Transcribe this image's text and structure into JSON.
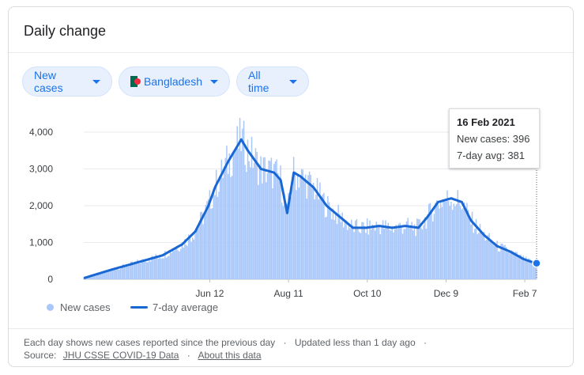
{
  "card": {
    "title": "Daily change"
  },
  "filters": {
    "metric": "New cases",
    "country": "Bangladesh",
    "range": "All time"
  },
  "tooltip": {
    "date": "16 Feb 2021",
    "new_cases": "New cases: 396",
    "avg": "7-day avg: 381"
  },
  "legend": {
    "bars": "New cases",
    "line": "7-day average"
  },
  "footer": {
    "line1": "Each day shows new cases reported since the previous day",
    "updated": "Updated less than 1 day ago",
    "source_label": "Source:",
    "source_link": "JHU CSSE COVID-19 Data",
    "about": "About this data"
  },
  "colors": {
    "bars": "#a8c7fa",
    "line": "#1967d2",
    "accent": "#1a73e8"
  },
  "chart_data": {
    "type": "bar",
    "x_start": "2020-03-08",
    "x_end": "2021-02-16",
    "xticks": [
      "Jun 12",
      "Aug 11",
      "Oct 10",
      "Dec 9",
      "Feb 7"
    ],
    "yticks": [
      "0",
      "1,000",
      "2,000",
      "3,000",
      "4,000"
    ],
    "ylim": [
      0,
      4000
    ],
    "series": [
      {
        "name": "7-day average",
        "type": "line",
        "points": [
          [
            0,
            30
          ],
          [
            20,
            250
          ],
          [
            40,
            450
          ],
          [
            60,
            650
          ],
          [
            75,
            950
          ],
          [
            85,
            1300
          ],
          [
            95,
            2000
          ],
          [
            100,
            2500
          ],
          [
            110,
            3200
          ],
          [
            115,
            3500
          ],
          [
            120,
            3800
          ],
          [
            125,
            3500
          ],
          [
            135,
            3000
          ],
          [
            145,
            2900
          ],
          [
            150,
            2700
          ],
          [
            155,
            1800
          ],
          [
            160,
            2900
          ],
          [
            165,
            2800
          ],
          [
            175,
            2500
          ],
          [
            185,
            2000
          ],
          [
            195,
            1700
          ],
          [
            205,
            1400
          ],
          [
            215,
            1400
          ],
          [
            225,
            1450
          ],
          [
            235,
            1400
          ],
          [
            245,
            1450
          ],
          [
            255,
            1400
          ],
          [
            262,
            1700
          ],
          [
            270,
            2100
          ],
          [
            280,
            2200
          ],
          [
            288,
            2100
          ],
          [
            295,
            1600
          ],
          [
            305,
            1200
          ],
          [
            315,
            900
          ],
          [
            325,
            750
          ],
          [
            335,
            550
          ],
          [
            343,
            450
          ],
          [
            353,
            380
          ]
        ]
      },
      {
        "name": "New cases",
        "type": "bar",
        "noise": 0.18
      }
    ],
    "grid": true
  }
}
